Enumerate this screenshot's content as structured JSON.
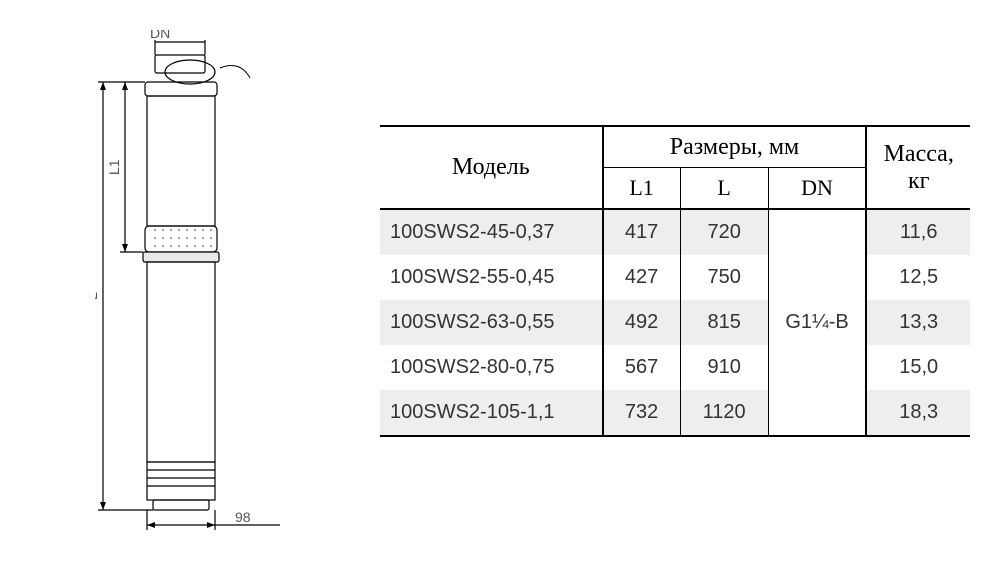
{
  "diagram": {
    "dn_label": "DN",
    "l1_label": "L1",
    "l_label": "L",
    "width_label": "98",
    "stroke": "#000000",
    "fill_body": "#ffffff",
    "fill_shade": "#d0d0d0"
  },
  "table": {
    "header_model": "Модель",
    "header_dims": "Размеры, мм",
    "header_mass_l1": "Масса,",
    "header_mass_l2": "кг",
    "sub_l1": "L1",
    "sub_l": "L",
    "sub_dn": "DN",
    "dn_value": "G1¼-B",
    "columns": [
      "model",
      "l1",
      "l",
      "mass"
    ],
    "rows": [
      {
        "model": "100SWS2-45-0,37",
        "l1": "417",
        "l": "720",
        "mass": "11,6",
        "striped": true
      },
      {
        "model": "100SWS2-55-0,45",
        "l1": "427",
        "l": "750",
        "mass": "12,5",
        "striped": false
      },
      {
        "model": "100SWS2-63-0,55",
        "l1": "492",
        "l": "815",
        "mass": "13,3",
        "striped": true
      },
      {
        "model": "100SWS2-80-0,75",
        "l1": "567",
        "l": "910",
        "mass": "15,0",
        "striped": false
      },
      {
        "model": "100SWS2-105-1,1",
        "l1": "732",
        "l": "1120",
        "mass": "18,3",
        "striped": true
      }
    ],
    "stripe_color": "#eeeeee",
    "border_color": "#000000",
    "body_font_size": 20,
    "header_font_size": 24
  }
}
